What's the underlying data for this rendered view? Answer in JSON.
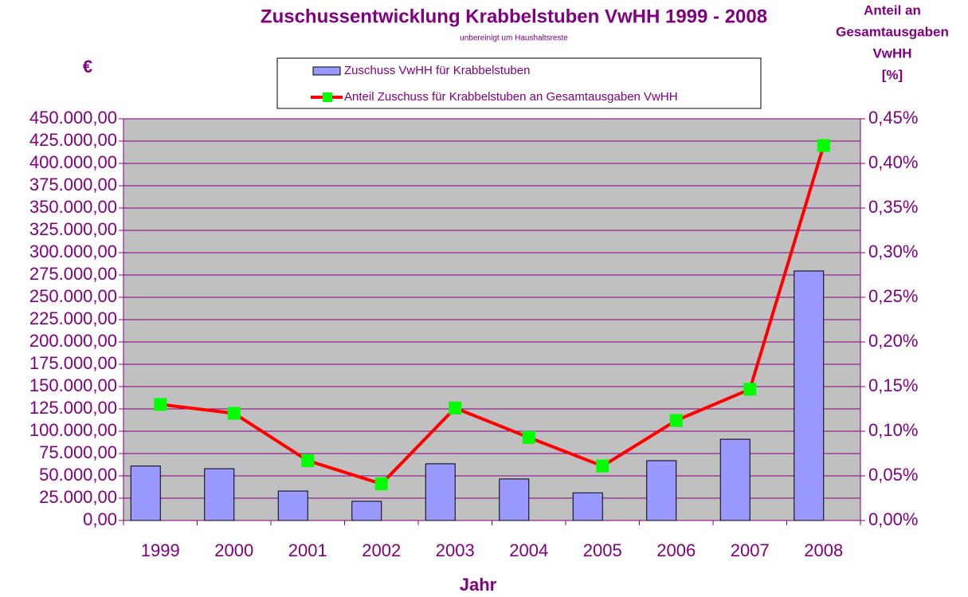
{
  "chart_data": {
    "type": "bar_line",
    "title": "Zuschussentwicklung Krabbelstuben VwHH 1999 - 2008",
    "subtitle": "unbereinigt um Haushaltsreste",
    "y_label": "€",
    "y2_label": [
      "Anteil an",
      "Gesamtausgaben",
      "VwHH",
      "[%]"
    ],
    "x_label": "Jahr",
    "categories": [
      "1999",
      "2000",
      "2001",
      "2002",
      "2003",
      "2004",
      "2005",
      "2006",
      "2007",
      "2008"
    ],
    "series": [
      {
        "name": "Zuschuss VwHH für Krabbelstuben",
        "type": "bar",
        "color": "#9999ff",
        "values": [
          61000,
          58000,
          33000,
          21500,
          63500,
          46500,
          31000,
          67000,
          91000,
          279500
        ]
      },
      {
        "name": "Anteil Zuschuss für Krabbelstuben an Gesamtausgaben VwHH",
        "type": "line",
        "axis": "y2",
        "color": "#ff0000",
        "marker_color": "#00ff00",
        "values": [
          0.13,
          0.12,
          0.067,
          0.041,
          0.126,
          0.093,
          0.061,
          0.112,
          0.147,
          0.42
        ]
      }
    ],
    "ylim": [
      0,
      450000
    ],
    "yticks": [
      {
        "value": 0,
        "label": "0,00"
      },
      {
        "value": 25000,
        "label": "25.000,00"
      },
      {
        "value": 50000,
        "label": "50.000,00"
      },
      {
        "value": 75000,
        "label": "75.000,00"
      },
      {
        "value": 100000,
        "label": "100.000,00"
      },
      {
        "value": 125000,
        "label": "125.000,00"
      },
      {
        "value": 150000,
        "label": "150.000,00"
      },
      {
        "value": 175000,
        "label": "175.000,00"
      },
      {
        "value": 200000,
        "label": "200.000,00"
      },
      {
        "value": 225000,
        "label": "225.000,00"
      },
      {
        "value": 250000,
        "label": "250.000,00"
      },
      {
        "value": 275000,
        "label": "275.000,00"
      },
      {
        "value": 300000,
        "label": "300.000,00"
      },
      {
        "value": 325000,
        "label": "325.000,00"
      },
      {
        "value": 350000,
        "label": "350.000,00"
      },
      {
        "value": 375000,
        "label": "375.000,00"
      },
      {
        "value": 400000,
        "label": "400.000,00"
      },
      {
        "value": 425000,
        "label": "425.000,00"
      },
      {
        "value": 450000,
        "label": "450.000,00"
      }
    ],
    "y2lim": [
      0,
      0.45
    ],
    "y2ticks": [
      {
        "value": 0,
        "label": "0,00%"
      },
      {
        "value": 0.05,
        "label": "0,05%"
      },
      {
        "value": 0.1,
        "label": "0,10%"
      },
      {
        "value": 0.15,
        "label": "0,15%"
      },
      {
        "value": 0.2,
        "label": "0,20%"
      },
      {
        "value": 0.25,
        "label": "0,25%"
      },
      {
        "value": 0.3,
        "label": "0,30%"
      },
      {
        "value": 0.35,
        "label": "0,35%"
      },
      {
        "value": 0.4,
        "label": "0,40%"
      },
      {
        "value": 0.45,
        "label": "0,45%"
      }
    ],
    "grid": true
  }
}
